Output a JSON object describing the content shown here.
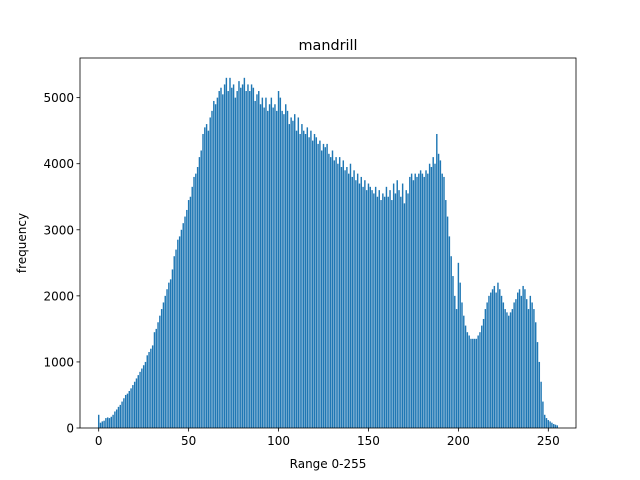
{
  "chart_data": {
    "type": "bar",
    "title": "mandrill",
    "xlabel": "Range 0-255",
    "ylabel": "frequency",
    "color": "#1f77b4",
    "x": [
      0,
      1,
      2,
      3,
      4,
      5,
      6,
      7,
      8,
      9,
      10,
      11,
      12,
      13,
      14,
      15,
      16,
      17,
      18,
      19,
      20,
      21,
      22,
      23,
      24,
      25,
      26,
      27,
      28,
      29,
      30,
      31,
      32,
      33,
      34,
      35,
      36,
      37,
      38,
      39,
      40,
      41,
      42,
      43,
      44,
      45,
      46,
      47,
      48,
      49,
      50,
      51,
      52,
      53,
      54,
      55,
      56,
      57,
      58,
      59,
      60,
      61,
      62,
      63,
      64,
      65,
      66,
      67,
      68,
      69,
      70,
      71,
      72,
      73,
      74,
      75,
      76,
      77,
      78,
      79,
      80,
      81,
      82,
      83,
      84,
      85,
      86,
      87,
      88,
      89,
      90,
      91,
      92,
      93,
      94,
      95,
      96,
      97,
      98,
      99,
      100,
      101,
      102,
      103,
      104,
      105,
      106,
      107,
      108,
      109,
      110,
      111,
      112,
      113,
      114,
      115,
      116,
      117,
      118,
      119,
      120,
      121,
      122,
      123,
      124,
      125,
      126,
      127,
      128,
      129,
      130,
      131,
      132,
      133,
      134,
      135,
      136,
      137,
      138,
      139,
      140,
      141,
      142,
      143,
      144,
      145,
      146,
      147,
      148,
      149,
      150,
      151,
      152,
      153,
      154,
      155,
      156,
      157,
      158,
      159,
      160,
      161,
      162,
      163,
      164,
      165,
      166,
      167,
      168,
      169,
      170,
      171,
      172,
      173,
      174,
      175,
      176,
      177,
      178,
      179,
      180,
      181,
      182,
      183,
      184,
      185,
      186,
      187,
      188,
      189,
      190,
      191,
      192,
      193,
      194,
      195,
      196,
      197,
      198,
      199,
      200,
      201,
      202,
      203,
      204,
      205,
      206,
      207,
      208,
      209,
      210,
      211,
      212,
      213,
      214,
      215,
      216,
      217,
      218,
      219,
      220,
      221,
      222,
      223,
      224,
      225,
      226,
      227,
      228,
      229,
      230,
      231,
      232,
      233,
      234,
      235,
      236,
      237,
      238,
      239,
      240,
      241,
      242,
      243,
      244,
      245,
      246,
      247,
      248,
      249,
      250,
      251,
      252,
      253,
      254,
      255
    ],
    "values": [
      200,
      80,
      100,
      110,
      150,
      160,
      150,
      170,
      200,
      250,
      280,
      320,
      350,
      400,
      450,
      500,
      520,
      560,
      600,
      650,
      700,
      750,
      800,
      850,
      900,
      950,
      1000,
      1100,
      1150,
      1200,
      1250,
      1450,
      1500,
      1600,
      1700,
      1800,
      1900,
      2000,
      2100,
      2200,
      2250,
      2400,
      2600,
      2700,
      2850,
      2900,
      3000,
      3100,
      3200,
      3300,
      3450,
      3500,
      3650,
      3800,
      3850,
      3950,
      4100,
      4200,
      4450,
      4550,
      4600,
      4500,
      4700,
      4800,
      4950,
      4900,
      5000,
      5100,
      5150,
      5050,
      5200,
      5300,
      5100,
      5300,
      5150,
      5200,
      5000,
      5100,
      5250,
      5150,
      5200,
      5300,
      5100,
      5200,
      5100,
      5200,
      5150,
      4950,
      5050,
      5100,
      4900,
      5000,
      4850,
      5000,
      4800,
      4900,
      5000,
      4850,
      4900,
      4800,
      5100,
      5000,
      4800,
      4750,
      4900,
      4800,
      4600,
      4700,
      4650,
      4750,
      4500,
      4700,
      4450,
      4600,
      4500,
      4450,
      4550,
      4400,
      4500,
      4350,
      4450,
      4400,
      4300,
      4350,
      4200,
      4300,
      4250,
      4300,
      4150,
      4100,
      4200,
      4050,
      4100,
      4000,
      4100,
      3950,
      4050,
      3900,
      3950,
      3850,
      4000,
      3800,
      3900,
      3750,
      3850,
      3700,
      3800,
      3650,
      3750,
      3600,
      3700,
      3650,
      3600,
      3550,
      3650,
      3500,
      3600,
      3450,
      3550,
      3500,
      3650,
      3500,
      3600,
      3450,
      3700,
      3550,
      3750,
      3600,
      3500,
      3700,
      3400,
      3600,
      3550,
      3800,
      3850,
      3750,
      3850,
      3800,
      3850,
      3900,
      3850,
      3800,
      3900,
      3850,
      4000,
      3950,
      4100,
      4000,
      4450,
      4150,
      4050,
      3850,
      3800,
      3450,
      3200,
      2900,
      2600,
      2300,
      2000,
      1800,
      2500,
      2200,
      1900,
      1700,
      1550,
      1450,
      1400,
      1350,
      1350,
      1350,
      1350,
      1400,
      1450,
      1550,
      1650,
      1800,
      1900,
      2000,
      2050,
      2100,
      2150,
      2050,
      2200,
      2100,
      2000,
      1900,
      1800,
      1750,
      1700,
      1750,
      1800,
      1900,
      1950,
      2050,
      2100,
      2000,
      2150,
      2100,
      1950,
      1800,
      2000,
      1900,
      1800,
      1600,
      1300,
      1000,
      700,
      400,
      200,
      150,
      120,
      100,
      80,
      60,
      50,
      40
    ],
    "xlim": [
      -10.4,
      265.4
    ],
    "xticks": [
      0,
      50,
      100,
      150,
      200,
      250
    ],
    "ylim": [
      0,
      5600
    ],
    "yticks": [
      0,
      1000,
      2000,
      3000,
      4000,
      5000
    ]
  }
}
